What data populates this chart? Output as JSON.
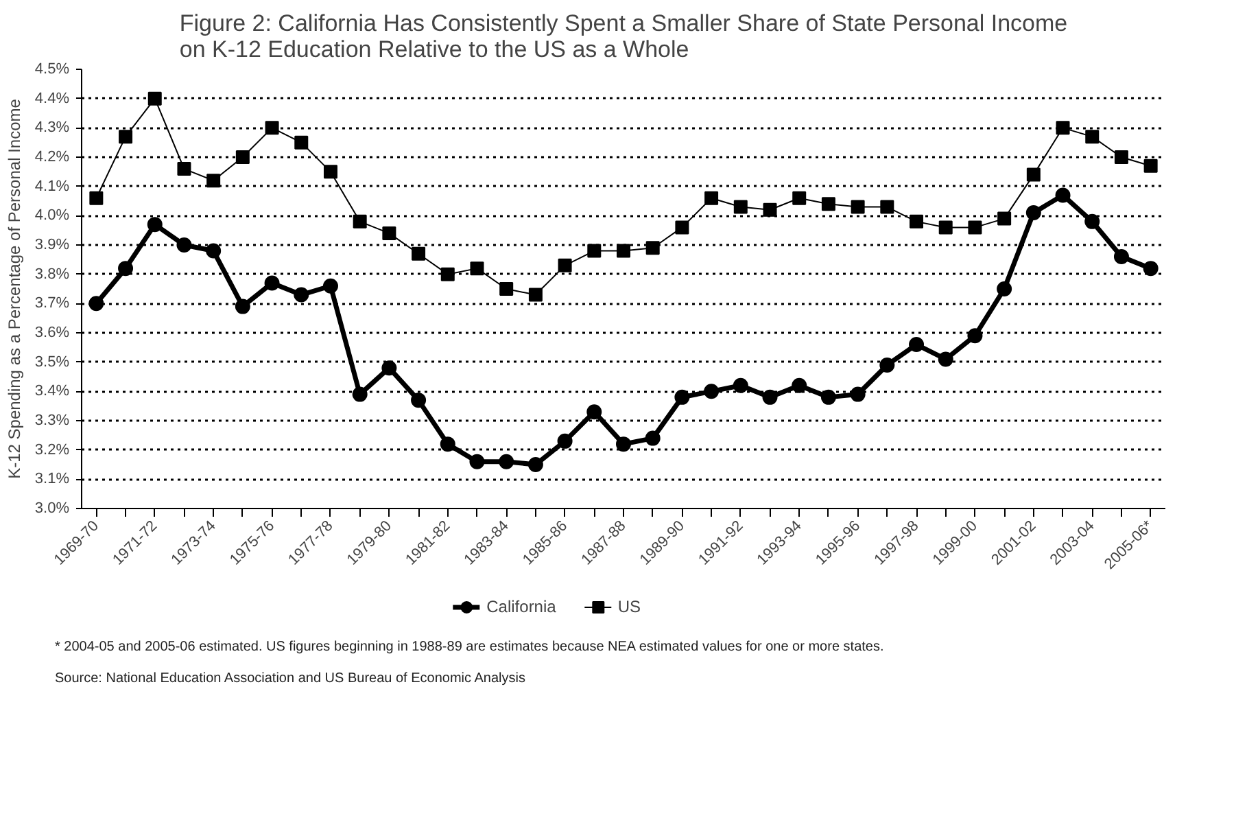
{
  "chart_data": {
    "type": "line",
    "title": "Figure 2: California Has Consistently Spent a Smaller Share of State Personal Income on K-12 Education Relative to the US as a Whole",
    "ylabel": "K-12 Spending as a Percentage of Personal Income",
    "categories": [
      "1969-70",
      null,
      "1971-72",
      null,
      "1973-74",
      null,
      "1975-76",
      null,
      "1977-78",
      null,
      "1979-80",
      null,
      "1981-82",
      null,
      "1983-84",
      null,
      "1985-86",
      null,
      "1987-88",
      null,
      "1989-90",
      null,
      "1991-92",
      null,
      "1993-94",
      null,
      "1995-96",
      null,
      "1997-98",
      null,
      "1999-00",
      null,
      "2001-02",
      null,
      "2003-04",
      null,
      "2005-06*"
    ],
    "series": [
      {
        "name": "California",
        "color": "#000000",
        "marker": "circle",
        "values": [
          3.7,
          3.82,
          3.97,
          3.9,
          3.88,
          3.69,
          3.77,
          3.73,
          3.76,
          3.39,
          3.48,
          3.37,
          3.22,
          3.16,
          3.16,
          3.15,
          3.23,
          3.33,
          3.22,
          3.24,
          3.38,
          3.4,
          3.42,
          3.38,
          3.42,
          3.38,
          3.39,
          3.49,
          3.56,
          3.51,
          3.59,
          3.75,
          4.01,
          4.07,
          3.98,
          3.86,
          3.82
        ]
      },
      {
        "name": "US",
        "color": "#000000",
        "marker": "square",
        "values": [
          4.06,
          4.27,
          4.4,
          4.16,
          4.12,
          4.2,
          4.3,
          4.25,
          4.15,
          3.98,
          3.94,
          3.87,
          3.8,
          3.82,
          3.75,
          3.73,
          3.83,
          3.88,
          3.88,
          3.89,
          3.96,
          4.06,
          4.03,
          4.02,
          4.06,
          4.04,
          4.03,
          4.03,
          3.98,
          3.96,
          3.96,
          3.99,
          4.14,
          4.3,
          4.27,
          4.2,
          4.17
        ]
      }
    ],
    "ylim": [
      3.0,
      4.5
    ],
    "yticks": [
      {
        "value": 3.0,
        "label": "3.0%"
      },
      {
        "value": 3.1,
        "label": "3.1%"
      },
      {
        "value": 3.2,
        "label": "3.2%"
      },
      {
        "value": 3.3,
        "label": "3.3%"
      },
      {
        "value": 3.4,
        "label": "3.4%"
      },
      {
        "value": 3.5,
        "label": "3.5%"
      },
      {
        "value": 3.6,
        "label": "3.6%"
      },
      {
        "value": 3.7,
        "label": "3.7%"
      },
      {
        "value": 3.8,
        "label": "3.8%"
      },
      {
        "value": 3.9,
        "label": "3.9%"
      },
      {
        "value": 4.0,
        "label": "4.0%"
      },
      {
        "value": 4.1,
        "label": "4.1%"
      },
      {
        "value": 4.2,
        "label": "4.2%"
      },
      {
        "value": 4.3,
        "label": "4.3%"
      },
      {
        "value": 4.4,
        "label": "4.4%"
      },
      {
        "value": 4.5,
        "label": "4.5%"
      }
    ],
    "grid": "y",
    "legend": "bottom",
    "annotations": [
      "* 2004-05 and 2005-06 estimated. US figures beginning in 1988-89 are estimates because NEA estimated values for one or more states.",
      "Source: National Education Association and US Bureau of Economic Analysis"
    ]
  }
}
